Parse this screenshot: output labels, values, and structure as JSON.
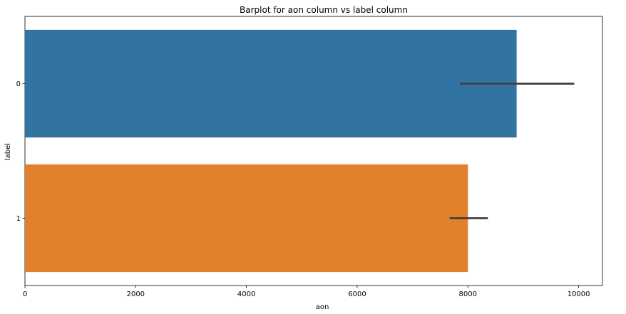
{
  "chart_data": {
    "type": "bar",
    "orientation": "horizontal",
    "title": "Barplot for aon column vs label column",
    "xlabel": "aon",
    "ylabel": "label",
    "categories": [
      "0",
      "1"
    ],
    "values": [
      8880,
      8000
    ],
    "error_bars": [
      [
        7860,
        9920
      ],
      [
        7670,
        8360
      ]
    ],
    "xlim": [
      0,
      10430
    ],
    "xticks": [
      0,
      2000,
      4000,
      6000,
      8000,
      10000
    ],
    "grid": false,
    "colors": [
      "#3274a1",
      "#e1812c"
    ],
    "error_bar_color": "#3f3f3f"
  }
}
